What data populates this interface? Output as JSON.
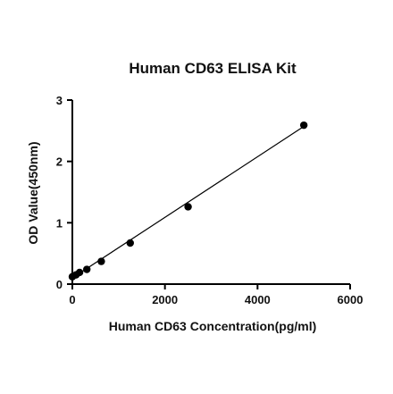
{
  "chart_data": {
    "type": "scatter",
    "title": "Human CD63 ELISA Kit",
    "xlabel": "Human CD63 Concentration(pg/ml)",
    "ylabel": "OD Value(450nm)",
    "xlim": [
      0,
      6000
    ],
    "ylim": [
      0,
      3
    ],
    "xticks": [
      0,
      2000,
      4000,
      6000
    ],
    "yticks": [
      0,
      1,
      2,
      3
    ],
    "grid": false,
    "legend": "none",
    "series": [
      {
        "points": [
          {
            "x": 0,
            "y": 0.12
          },
          {
            "x": 78,
            "y": 0.15
          },
          {
            "x": 156,
            "y": 0.19
          },
          {
            "x": 313,
            "y": 0.24
          },
          {
            "x": 625,
            "y": 0.37
          },
          {
            "x": 1250,
            "y": 0.67
          },
          {
            "x": 2500,
            "y": 1.26
          },
          {
            "x": 5000,
            "y": 2.59
          }
        ],
        "fit": {
          "x": [
            0,
            5000
          ],
          "y": [
            0.1,
            2.57
          ]
        }
      }
    ]
  }
}
